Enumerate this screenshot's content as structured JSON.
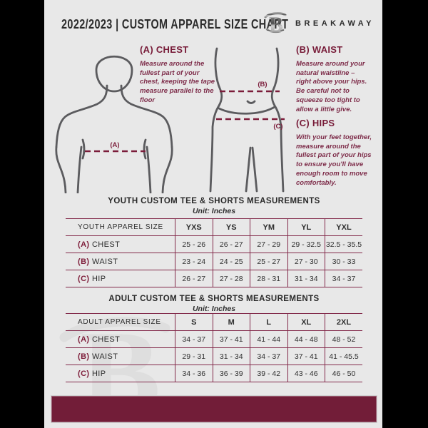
{
  "colors": {
    "background": "#e8e8e8",
    "maroon": "#771b38",
    "line_maroon": "#82294a",
    "bar": "#721d38",
    "figure_gray": "#5b5b5e",
    "dark_text": "#2b2b2b"
  },
  "header": {
    "title": "2022/2023  |  CUSTOM APPAREL SIZE CHART",
    "brand": "BREAKAWAY"
  },
  "guide": {
    "chest": {
      "heading": "(A) CHEST",
      "marker": "(A)",
      "body": "Measure around the fullest part of your chest, keeping the tape measure parallel to the floor"
    },
    "waist": {
      "heading": "(B) WAIST",
      "marker": "(B)",
      "body": "Measure around your natural waistline – right above your hips. Be careful not to squeeze too tight to allow a little give."
    },
    "hips": {
      "heading": "(C) HIPS",
      "marker": "(C)",
      "body": "With your feet together, measure around the fullest part of your hips to ensure you'll have enough room to move comfortably."
    }
  },
  "tables": [
    {
      "title": "YOUTH CUSTOM TEE & SHORTS MEASUREMENTS",
      "subtitle": "Unit: Inches",
      "label_header": "YOUTH APPAREL SIZE",
      "columns": [
        "YXS",
        "YS",
        "YM",
        "YL",
        "YXL"
      ],
      "rows": [
        {
          "key": "(A)",
          "label": "CHEST",
          "values": [
            "25 - 26",
            "26 - 27",
            "27 - 29",
            "29 - 32.5",
            "32.5 - 35.5"
          ]
        },
        {
          "key": "(B)",
          "label": "WAIST",
          "values": [
            "23 - 24",
            "24 - 25",
            "25 - 27",
            "27 - 30",
            "30 - 33"
          ]
        },
        {
          "key": "(C)",
          "label": "HIP",
          "values": [
            "26 - 27",
            "27 - 28",
            "28 - 31",
            "31 - 34",
            "34 - 37"
          ]
        }
      ]
    },
    {
      "title": "ADULT CUSTOM TEE & SHORTS MEASUREMENTS",
      "subtitle": "Unit: Inches",
      "label_header": "ADULT APPAREL SIZE",
      "columns": [
        "S",
        "M",
        "L",
        "XL",
        "2XL"
      ],
      "rows": [
        {
          "key": "(A)",
          "label": "CHEST",
          "values": [
            "34 - 37",
            "37 - 41",
            "41 - 44",
            "44 - 48",
            "48 - 52"
          ]
        },
        {
          "key": "(B)",
          "label": "WAIST",
          "values": [
            "29 - 31",
            "31 - 34",
            "34 - 37",
            "37 - 41",
            "41 - 45.5"
          ]
        },
        {
          "key": "(C)",
          "label": "HIP",
          "values": [
            "34 - 36",
            "36 - 39",
            "39 - 42",
            "43 - 46",
            "46 - 50"
          ]
        }
      ]
    }
  ]
}
